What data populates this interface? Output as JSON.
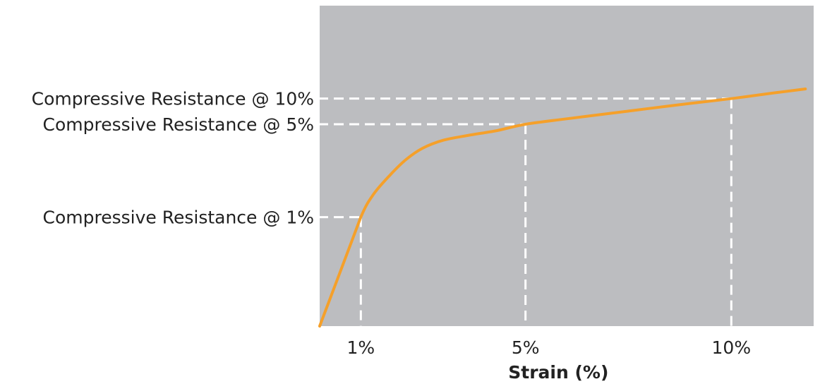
{
  "colors": {
    "plot_background": "#bcbdc0",
    "curve": "#f5a02a",
    "guide_lines": "#ffffff",
    "text": "#222222"
  },
  "chart_data": {
    "type": "line",
    "xlabel": "Strain (%)",
    "ylabel": "",
    "xlim": [
      0,
      12
    ],
    "ylim": [
      0,
      100
    ],
    "grid": false,
    "legend": "none",
    "x_ticks": [
      {
        "value": 1,
        "label": "1%"
      },
      {
        "value": 5,
        "label": "5%"
      },
      {
        "value": 10,
        "label": "10%"
      }
    ],
    "y_annotations": [
      {
        "x": 10,
        "y": 71,
        "label": "Compressive Resistance @ 10%"
      },
      {
        "x": 5,
        "y": 63,
        "label": "Compressive Resistance @ 5%"
      },
      {
        "x": 1,
        "y": 34,
        "label": "Compressive Resistance @ 1%"
      }
    ],
    "series": [
      {
        "x": [
          0,
          0.5,
          1.0,
          1.3,
          1.7,
          2.1,
          2.5,
          3.0,
          3.6,
          4.3,
          5.0,
          6.0,
          7.0,
          8.0,
          9.0,
          10.0,
          11.0,
          11.8
        ],
        "y": [
          0,
          17,
          34,
          41,
          47,
          52,
          55.5,
          58,
          59.5,
          61,
          63,
          64.7,
          66.3,
          67.9,
          69.5,
          71,
          72.7,
          74
        ]
      }
    ]
  }
}
